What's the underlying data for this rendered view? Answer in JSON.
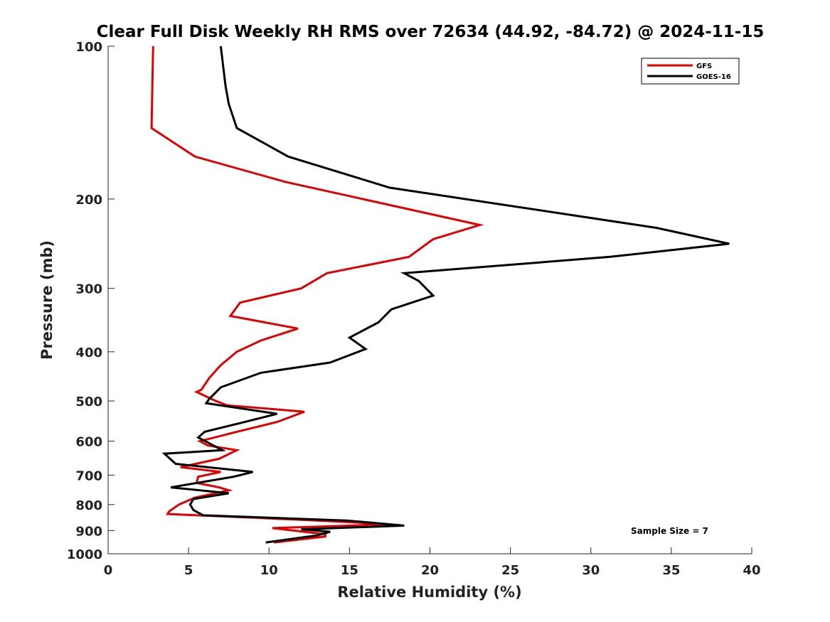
{
  "chart_data": {
    "type": "line",
    "title": "Clear Full Disk Weekly RH RMS over 72634 (44.92, -84.72) @ 2024-11-15",
    "xlabel": "Relative Humidity (%)",
    "ylabel": "Pressure (mb)",
    "xlim": [
      0,
      40
    ],
    "ylim": [
      100,
      1000
    ],
    "yscale": "log",
    "y_reversed": true,
    "xticks": [
      0,
      5,
      10,
      15,
      20,
      25,
      30,
      35,
      40
    ],
    "yticks": [
      100,
      200,
      300,
      400,
      500,
      600,
      700,
      800,
      900,
      1000
    ],
    "grid": false,
    "legend_position": "top-right",
    "annotation": "Sample Size = 7",
    "series": [
      {
        "name": "GFS",
        "color": "#e00000",
        "x": [
          2.8,
          2.7,
          5.4,
          11.0,
          23.1,
          20.2,
          18.7,
          13.6,
          12.0,
          8.2,
          7.6,
          11.8,
          9.5,
          8.0,
          7.0,
          6.3,
          5.8,
          5.5,
          6.7,
          7.4,
          12.2,
          10.5,
          8.0,
          5.7,
          6.2,
          8.0,
          6.9,
          4.5,
          7.0,
          5.6,
          5.5,
          6.9,
          7.5,
          5.4,
          4.4,
          3.8,
          3.7,
          13.0,
          17.5,
          10.2,
          13.5,
          13.5,
          10.3
        ],
        "y": [
          100,
          145,
          165,
          185,
          225,
          240,
          260,
          280,
          300,
          320,
          340,
          360,
          380,
          400,
          425,
          450,
          475,
          480,
          500,
          510,
          525,
          550,
          575,
          600,
          612,
          625,
          650,
          675,
          690,
          705,
          725,
          740,
          750,
          775,
          800,
          825,
          835,
          860,
          875,
          890,
          915,
          925,
          950
        ]
      },
      {
        "name": "GOES-16",
        "color": "#000000",
        "x": [
          7.0,
          7.3,
          7.5,
          8.0,
          11.2,
          17.5,
          34.1,
          38.6,
          31.2,
          18.4,
          19.3,
          20.2,
          17.6,
          16.8,
          15.0,
          16.0,
          13.8,
          9.5,
          7.0,
          6.3,
          6.1,
          10.5,
          8.5,
          6.0,
          5.6,
          7.1,
          3.5,
          4.2,
          9.0,
          7.8,
          3.9,
          7.5,
          5.3,
          5.1,
          5.3,
          5.9,
          14.8,
          18.4,
          12.0,
          13.8,
          13.0,
          9.8
        ],
        "y": [
          100,
          120,
          130,
          145,
          165,
          190,
          228,
          245,
          260,
          280,
          290,
          310,
          330,
          350,
          375,
          395,
          420,
          440,
          470,
          495,
          505,
          530,
          550,
          575,
          590,
          625,
          635,
          665,
          690,
          705,
          740,
          760,
          780,
          800,
          820,
          840,
          860,
          880,
          895,
          905,
          920,
          950
        ]
      }
    ]
  }
}
